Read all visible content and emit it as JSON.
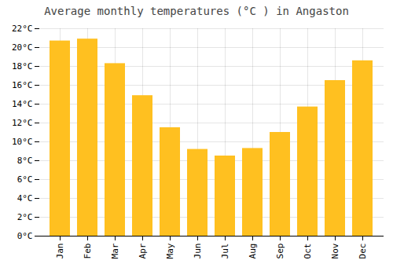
{
  "chart_data": {
    "type": "bar",
    "title": "Average monthly temperatures (°C ) in Angaston",
    "categories": [
      "Jan",
      "Feb",
      "Mar",
      "Apr",
      "May",
      "Jun",
      "Jul",
      "Aug",
      "Sep",
      "Oct",
      "Nov",
      "Dec"
    ],
    "values": [
      20.7,
      20.9,
      18.3,
      14.9,
      11.5,
      9.2,
      8.5,
      9.3,
      11.0,
      13.7,
      16.5,
      18.6
    ],
    "color": "#FFC020",
    "ylim": [
      0,
      22
    ],
    "yticks": [
      {
        "value": 0,
        "label": "0°C"
      },
      {
        "value": 2,
        "label": "2°C"
      },
      {
        "value": 4,
        "label": "4°C"
      },
      {
        "value": 6,
        "label": "6°C"
      },
      {
        "value": 8,
        "label": "8°C"
      },
      {
        "value": 10,
        "label": "10°C"
      },
      {
        "value": 12,
        "label": "12°C"
      },
      {
        "value": 14,
        "label": "14°C"
      },
      {
        "value": 16,
        "label": "16°C"
      },
      {
        "value": 18,
        "label": "18°C"
      },
      {
        "value": 20,
        "label": "20°C"
      },
      {
        "value": 22,
        "label": "22°C"
      }
    ],
    "grid": true
  }
}
